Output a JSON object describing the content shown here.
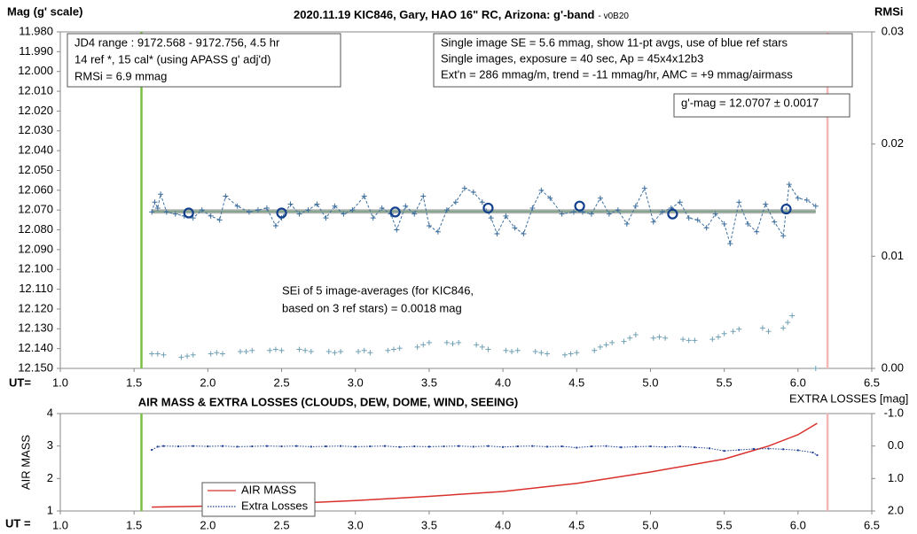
{
  "chart_data": [
    {
      "type": "scatter",
      "title": "2020.11.19 KIC846, Gary, HAO 16\" RC, Arizona: g'-band",
      "subtitle": "- v0B20",
      "y_label": "Mag (g' scale)",
      "y2_label": "RMSi",
      "x_label": "UT=",
      "xlim": [
        1.0,
        6.5
      ],
      "xticks": [
        {
          "value": 1.0,
          "label": "1.0"
        },
        {
          "value": 1.5,
          "label": "1.5"
        },
        {
          "value": 2.0,
          "label": "2.0"
        },
        {
          "value": 2.5,
          "label": "2.5"
        },
        {
          "value": 3.0,
          "label": "3.0"
        },
        {
          "value": 3.5,
          "label": "3.5"
        },
        {
          "value": 4.0,
          "label": "4.0"
        },
        {
          "value": 4.5,
          "label": "4.5"
        },
        {
          "value": 5.0,
          "label": "5.0"
        },
        {
          "value": 5.5,
          "label": "5.5"
        },
        {
          "value": 6.0,
          "label": "6.0"
        },
        {
          "value": 6.5,
          "label": "6.5"
        }
      ],
      "ylim": [
        12.15,
        11.98
      ],
      "yticks": [
        {
          "value": 11.98,
          "label": "11.980"
        },
        {
          "value": 11.99,
          "label": "11.990"
        },
        {
          "value": 12.0,
          "label": "12.000"
        },
        {
          "value": 12.01,
          "label": "12.010"
        },
        {
          "value": 12.02,
          "label": "12.020"
        },
        {
          "value": 12.03,
          "label": "12.030"
        },
        {
          "value": 12.04,
          "label": "12.040"
        },
        {
          "value": 12.05,
          "label": "12.050"
        },
        {
          "value": 12.06,
          "label": "12.060"
        },
        {
          "value": 12.07,
          "label": "12.070"
        },
        {
          "value": 12.08,
          "label": "12.080"
        },
        {
          "value": 12.09,
          "label": "12.090"
        },
        {
          "value": 12.1,
          "label": "12.100"
        },
        {
          "value": 12.11,
          "label": "12.110"
        },
        {
          "value": 12.12,
          "label": "12.120"
        },
        {
          "value": 12.13,
          "label": "12.130"
        },
        {
          "value": 12.14,
          "label": "12.140"
        },
        {
          "value": 12.15,
          "label": "12.150"
        }
      ],
      "y2lim": [
        0.0,
        0.03
      ],
      "y2ticks": [
        {
          "value": 0.0,
          "label": "0.00"
        },
        0.01,
        0.02,
        0.03
      ],
      "mean": 12.0707,
      "mean_color": "#7fa58a",
      "vlines": [
        {
          "value": 1.55,
          "color": "#77c043"
        },
        {
          "value": 6.2,
          "color": "#f4b6b6"
        }
      ],
      "series": [
        {
          "color": "#3d6f9e",
          "marker": "plus",
          "line": "dashed",
          "x": [
            1.62,
            1.64,
            1.66,
            1.68,
            1.72,
            1.78,
            1.84,
            1.9,
            1.96,
            2.02,
            2.08,
            2.12,
            2.2,
            2.28,
            2.34,
            2.4,
            2.46,
            2.5,
            2.56,
            2.62,
            2.68,
            2.74,
            2.8,
            2.86,
            2.92,
            2.98,
            3.06,
            3.12,
            3.18,
            3.24,
            3.28,
            3.34,
            3.4,
            3.46,
            3.5,
            3.56,
            3.62,
            3.68,
            3.74,
            3.8,
            3.86,
            3.92,
            3.96,
            4.02,
            4.08,
            4.14,
            4.2,
            4.26,
            4.32,
            4.4,
            4.48,
            4.54,
            4.6,
            4.66,
            4.72,
            4.78,
            4.84,
            4.9,
            4.96,
            5.02,
            5.08,
            5.14,
            5.2,
            5.26,
            5.32,
            5.38,
            5.44,
            5.5,
            5.54,
            5.6,
            5.66,
            5.72,
            5.78,
            5.84,
            5.9,
            5.94,
            6.0,
            6.06,
            6.12
          ],
          "values": [
            12.071,
            12.066,
            12.069,
            12.062,
            12.071,
            12.072,
            12.073,
            12.074,
            12.07,
            12.073,
            12.075,
            12.063,
            12.068,
            12.071,
            12.07,
            12.069,
            12.078,
            12.074,
            12.067,
            12.072,
            12.07,
            12.067,
            12.074,
            12.068,
            12.072,
            12.07,
            12.063,
            12.074,
            12.069,
            12.072,
            12.08,
            12.068,
            12.072,
            12.063,
            12.078,
            12.081,
            12.07,
            12.066,
            12.059,
            12.061,
            12.066,
            12.074,
            12.082,
            12.073,
            12.079,
            12.082,
            12.069,
            12.06,
            12.064,
            12.072,
            12.071,
            12.071,
            12.072,
            12.064,
            12.072,
            12.07,
            12.077,
            12.068,
            12.059,
            12.076,
            12.071,
            12.069,
            12.066,
            12.074,
            12.075,
            12.079,
            12.072,
            12.077,
            12.087,
            12.066,
            12.077,
            12.081,
            12.067,
            12.076,
            12.083,
            12.057,
            12.064,
            12.065,
            12.068
          ]
        },
        {
          "color": "#123f8c",
          "marker": "circle",
          "x": [
            1.87,
            2.5,
            3.27,
            3.9,
            4.52,
            5.15,
            5.92
          ],
          "values": [
            12.0715,
            12.0715,
            12.071,
            12.069,
            12.068,
            12.072,
            12.0695
          ]
        },
        {
          "color": "#6fa0b4",
          "marker": "plus",
          "axis": "y2",
          "x": [
            1.62,
            1.66,
            1.7,
            1.82,
            1.86,
            1.9,
            2.02,
            2.06,
            2.1,
            2.22,
            2.26,
            2.3,
            2.42,
            2.46,
            2.5,
            2.62,
            2.66,
            2.7,
            2.82,
            2.86,
            2.9,
            3.02,
            3.06,
            3.1,
            3.22,
            3.26,
            3.3,
            3.42,
            3.46,
            3.5,
            3.62,
            3.66,
            3.7,
            3.82,
            3.86,
            3.9,
            4.02,
            4.06,
            4.1,
            4.22,
            4.26,
            4.3,
            4.42,
            4.46,
            4.5,
            4.62,
            4.66,
            4.7,
            4.74,
            4.82,
            4.86,
            4.9,
            5.02,
            5.06,
            5.1,
            5.22,
            5.26,
            5.3,
            5.42,
            5.46,
            5.5,
            5.56,
            5.6,
            5.76,
            5.8,
            5.9,
            5.93,
            5.96,
            6.12
          ],
          "values": [
            0.0013,
            0.0013,
            0.0012,
            0.001,
            0.0011,
            0.0012,
            0.0013,
            0.0014,
            0.0013,
            0.0015,
            0.0015,
            0.0016,
            0.0016,
            0.0017,
            0.0016,
            0.0017,
            0.0016,
            0.0015,
            0.0015,
            0.0014,
            0.0015,
            0.0015,
            0.0016,
            0.0014,
            0.0016,
            0.0017,
            0.0018,
            0.0019,
            0.0021,
            0.0023,
            0.0023,
            0.0022,
            0.0023,
            0.0021,
            0.0019,
            0.0017,
            0.0016,
            0.0015,
            0.0016,
            0.0015,
            0.0014,
            0.0013,
            0.0012,
            0.0013,
            0.0014,
            0.0016,
            0.0019,
            0.0021,
            0.0023,
            0.0024,
            0.0027,
            0.003,
            0.0027,
            0.0028,
            0.0027,
            0.0026,
            0.0025,
            0.0025,
            0.0026,
            0.0028,
            0.0031,
            0.0033,
            0.0035,
            0.0036,
            0.0033,
            0.0036,
            0.0041,
            0.0047,
            0.0
          ]
        }
      ],
      "annotations": [
        {
          "lines": [
            "JD4 range : 9172.568 - 9172.756,  4.5  hr",
            "14 ref *, 15 cal* (using APASS g' adj'd)",
            "RMSi = 6.9 mmag"
          ]
        },
        {
          "lines": [
            "Single image SE = 5.6 mmag, show  11-pt avgs, use of blue ref stars",
            "Single images, exposure = 40 sec, Ap = 45x4x12b3",
            "Ext'n = 286 mmag/m, trend =  -11 mmag/hr, AMC = +9 mmag/airmass"
          ]
        },
        {
          "lines": [
            "g'-mag = 12.0707 ± 0.0017"
          ]
        },
        {
          "lines": [
            "SEi of 5 image-averages (for KIC846,",
            "based on 3 ref stars) = 0.0018 mag"
          ]
        }
      ]
    },
    {
      "type": "line",
      "title": "AIR MASS & EXTRA LOSSES (CLOUDS, DEW, DOME, WIND, SEEING)",
      "y_label": "AIR MASS",
      "y2_label": "EXTRA LOSSES [mag]",
      "x_label": "UT =",
      "xlim": [
        1.0,
        6.5
      ],
      "xticks": [
        {
          "value": 1.0,
          "label": "1.0"
        },
        {
          "value": 1.5,
          "label": "1.5"
        },
        {
          "value": 2.0,
          "label": "2.0"
        },
        {
          "value": 2.5,
          "label": "2.5"
        },
        {
          "value": 3.0,
          "label": "3.0"
        },
        {
          "value": 3.5,
          "label": "3.5"
        },
        {
          "value": 4.0,
          "label": "4.0"
        },
        {
          "value": 4.5,
          "label": "4.5"
        },
        {
          "value": 5.0,
          "label": "5.0"
        },
        {
          "value": 5.5,
          "label": "5.5"
        },
        {
          "value": 6.0,
          "label": "6.0"
        },
        {
          "value": 6.5,
          "label": "6.5"
        }
      ],
      "ylim": [
        1,
        4
      ],
      "yticks": [
        1,
        2,
        3,
        4
      ],
      "y2lim": [
        2.0,
        -1.0
      ],
      "y2ticks": [
        {
          "value": 2.0,
          "label": "2.0"
        },
        {
          "value": 1.0,
          "label": "1.0"
        },
        {
          "value": 0.0,
          "label": "0.0"
        },
        {
          "value": -1.0,
          "label": "-1.0"
        }
      ],
      "vlines": [
        {
          "value": 1.55,
          "color": "#77c043"
        },
        {
          "value": 6.2,
          "color": "#f4b6b6"
        }
      ],
      "series": [
        {
          "name": "AIR MASS",
          "color": "#d9302c",
          "line": "solid",
          "x": [
            1.62,
            2.0,
            2.5,
            3.0,
            3.5,
            4.0,
            4.5,
            5.0,
            5.5,
            5.8,
            6.0,
            6.13
          ],
          "values": [
            1.12,
            1.15,
            1.22,
            1.32,
            1.45,
            1.6,
            1.85,
            2.2,
            2.6,
            3.0,
            3.35,
            3.7
          ]
        },
        {
          "name": "Extra Losses",
          "color": "#1f3f96",
          "line": "dotted",
          "axis": "y2",
          "x": [
            1.62,
            1.66,
            1.7,
            1.8,
            1.9,
            2.0,
            2.1,
            2.2,
            2.3,
            2.4,
            2.5,
            2.6,
            2.7,
            2.8,
            2.9,
            3.0,
            3.1,
            3.2,
            3.3,
            3.4,
            3.5,
            3.6,
            3.7,
            3.8,
            3.9,
            4.0,
            4.1,
            4.2,
            4.3,
            4.4,
            4.5,
            4.6,
            4.7,
            4.8,
            4.9,
            5.0,
            5.1,
            5.2,
            5.3,
            5.4,
            5.5,
            5.6,
            5.7,
            5.8,
            5.9,
            6.0,
            6.1,
            6.13
          ],
          "values": [
            0.12,
            0.02,
            0.0,
            0.01,
            0.0,
            0.01,
            0.0,
            0.02,
            0.01,
            0.0,
            0.01,
            0.0,
            0.02,
            0.01,
            0.0,
            0.02,
            0.01,
            0.0,
            0.03,
            0.01,
            0.02,
            0.01,
            0.0,
            0.02,
            0.0,
            0.03,
            0.01,
            0.0,
            0.02,
            0.01,
            0.05,
            0.01,
            0.0,
            0.04,
            0.02,
            0.01,
            0.03,
            0.01,
            0.04,
            0.07,
            0.15,
            0.12,
            0.09,
            0.08,
            0.1,
            0.13,
            0.2,
            0.28
          ]
        }
      ]
    }
  ]
}
